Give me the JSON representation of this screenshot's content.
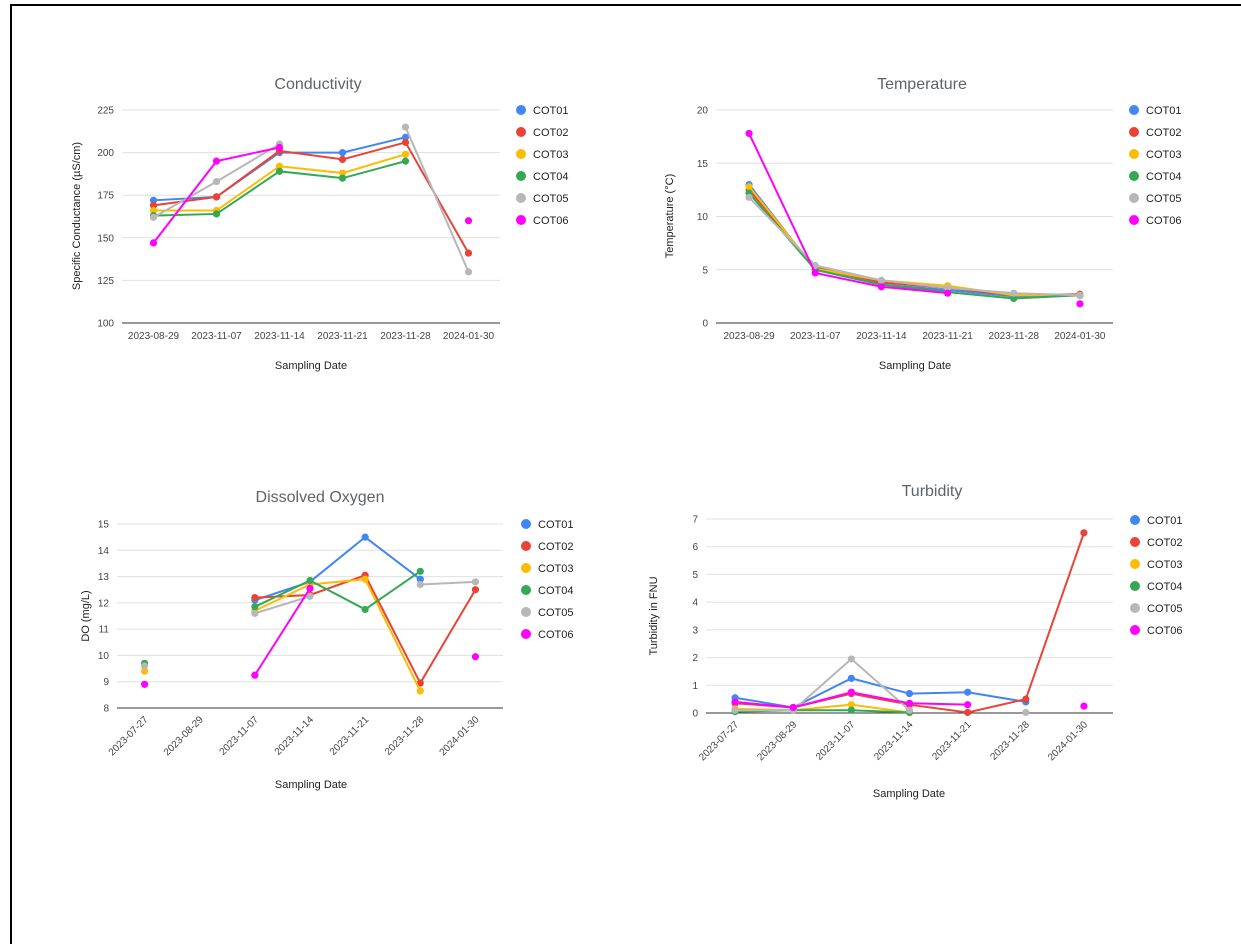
{
  "colors": [
    "#4285f4",
    "#ea4335",
    "#fbbc04",
    "#34a853",
    "#b7b7b7",
    "#ff00ff"
  ],
  "chart_data": [
    {
      "type": "line",
      "title": "Conductivity",
      "xlabel": "Sampling Date",
      "ylabel": "Specific Conductance (µS/cm)",
      "categories": [
        "2023-08-29",
        "2023-11-07",
        "2023-11-14",
        "2023-11-21",
        "2023-11-28",
        "2024-01-30"
      ],
      "ylim": [
        100,
        225
      ],
      "yticks": [
        100,
        125,
        150,
        175,
        200,
        225
      ],
      "grid": true,
      "legend": "right",
      "series": [
        {
          "name": "COT01",
          "values": [
            172,
            174,
            200,
            200,
            209,
            null
          ]
        },
        {
          "name": "COT02",
          "values": [
            169,
            174,
            201,
            196,
            206,
            141
          ]
        },
        {
          "name": "COT03",
          "values": [
            166,
            166,
            192,
            188,
            199,
            null
          ]
        },
        {
          "name": "COT04",
          "values": [
            163,
            164,
            189,
            185,
            195,
            null
          ]
        },
        {
          "name": "COT05",
          "values": [
            162,
            183,
            205,
            null,
            215,
            130
          ]
        },
        {
          "name": "COT06",
          "values": [
            147,
            195,
            203,
            null,
            null,
            160
          ]
        }
      ]
    },
    {
      "type": "line",
      "title": "Temperature",
      "xlabel": "Sampling Date",
      "ylabel": "Temperature (°C)",
      "categories": [
        "2023-08-29",
        "2023-11-07",
        "2023-11-14",
        "2023-11-21",
        "2023-11-28",
        "2024-01-30"
      ],
      "ylim": [
        0,
        20
      ],
      "yticks": [
        0,
        5,
        10,
        15,
        20
      ],
      "grid": true,
      "legend": "right",
      "series": [
        {
          "name": "COT01",
          "values": [
            13.0,
            5.0,
            3.6,
            3.1,
            2.5,
            2.6
          ]
        },
        {
          "name": "COT02",
          "values": [
            12.5,
            5.2,
            3.8,
            3.3,
            2.6,
            2.7
          ]
        },
        {
          "name": "COT03",
          "values": [
            12.8,
            5.1,
            4.0,
            3.5,
            2.6,
            2.6
          ]
        },
        {
          "name": "COT04",
          "values": [
            12.2,
            5.0,
            3.6,
            2.9,
            2.3,
            2.6
          ]
        },
        {
          "name": "COT05",
          "values": [
            11.8,
            5.4,
            4.0,
            3.3,
            2.8,
            2.6
          ]
        },
        {
          "name": "COT06",
          "values": [
            17.8,
            4.7,
            3.4,
            2.8,
            null,
            1.8
          ]
        }
      ]
    },
    {
      "type": "line",
      "title": "Dissolved Oxygen",
      "xlabel": "Sampling Date",
      "ylabel": "DO (mg/L)",
      "categories": [
        "2023-07-27",
        "2023-08-29",
        "2023-11-07",
        "2023-11-14",
        "2023-11-21",
        "2023-11-28",
        "2024-01-30"
      ],
      "ylim": [
        8,
        15
      ],
      "yticks": [
        8,
        9,
        10,
        11,
        12,
        13,
        14,
        15
      ],
      "grid": true,
      "legend": "right",
      "series": [
        {
          "name": "COT01",
          "values": [
            null,
            null,
            12.1,
            12.8,
            14.5,
            12.9,
            null
          ]
        },
        {
          "name": "COT02",
          "values": [
            null,
            null,
            12.2,
            12.3,
            13.05,
            8.95,
            12.5
          ]
        },
        {
          "name": "COT03",
          "values": [
            9.4,
            null,
            11.7,
            12.7,
            12.9,
            8.65,
            null
          ]
        },
        {
          "name": "COT04",
          "values": [
            9.7,
            null,
            11.85,
            12.85,
            11.75,
            13.2,
            null
          ]
        },
        {
          "name": "COT05",
          "values": [
            9.6,
            null,
            11.6,
            12.25,
            null,
            12.7,
            12.8
          ]
        },
        {
          "name": "COT06",
          "values": [
            8.9,
            null,
            9.25,
            12.55,
            null,
            null,
            9.95
          ]
        }
      ]
    },
    {
      "type": "line",
      "title": "Turbidity",
      "xlabel": "Sampling Date",
      "ylabel": "Turbidity in FNU",
      "categories": [
        "2023-07-27",
        "2023-08-29",
        "2023-11-07",
        "2023-11-14",
        "2023-11-21",
        "2023-11-28",
        "2024-01-30"
      ],
      "ylim": [
        0,
        7
      ],
      "yticks": [
        0,
        1,
        2,
        3,
        4,
        5,
        6,
        7
      ],
      "grid": true,
      "legend": "right",
      "series": [
        {
          "name": "COT01",
          "values": [
            0.55,
            0.2,
            1.25,
            0.7,
            0.75,
            0.4,
            null
          ]
        },
        {
          "name": "COT02",
          "values": [
            0.35,
            0.2,
            0.7,
            0.3,
            0.02,
            0.5,
            6.5
          ]
        },
        {
          "name": "COT03",
          "values": [
            0.15,
            0.1,
            0.3,
            0.02,
            null,
            null,
            null
          ]
        },
        {
          "name": "COT04",
          "values": [
            0.05,
            0.1,
            0.1,
            0.02,
            null,
            null,
            null
          ]
        },
        {
          "name": "COT05",
          "values": [
            0.1,
            0.1,
            1.95,
            0.1,
            null,
            0.02,
            null
          ]
        },
        {
          "name": "COT06",
          "values": [
            0.4,
            0.2,
            0.75,
            0.35,
            0.3,
            null,
            0.25
          ]
        }
      ]
    }
  ]
}
